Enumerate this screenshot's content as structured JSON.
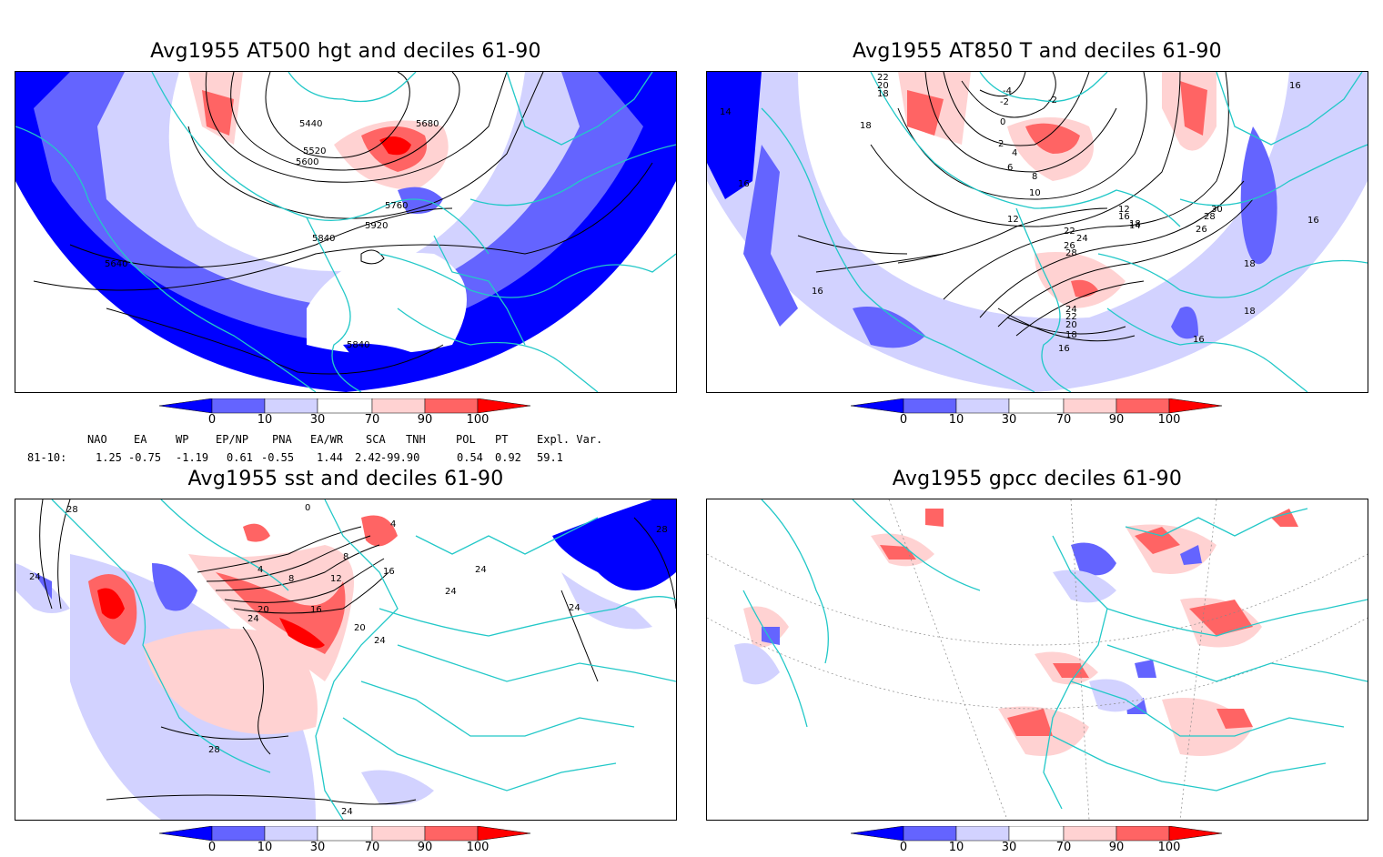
{
  "panels": [
    {
      "id": "p1",
      "title": "Avg1955 AT500 hgt and deciles 61-90",
      "contour_labels": [
        "5440",
        "5680",
        "5520",
        "5600",
        "5760",
        "5840",
        "5920",
        "5640",
        "5840"
      ]
    },
    {
      "id": "p2",
      "title": "Avg1955 AT850 T and deciles 61-90",
      "contour_labels": [
        "22",
        "20",
        "18",
        "-4",
        "-2",
        "0",
        "-2",
        "2",
        "4",
        "6",
        "8",
        "10",
        "12",
        "14",
        "16",
        "18",
        "22",
        "24",
        "26",
        "28",
        "30",
        "28",
        "26",
        "16",
        "18",
        "12",
        "16",
        "14",
        "16",
        "16",
        "18",
        "18",
        "24",
        "22",
        "20",
        "18",
        "16",
        "16"
      ]
    },
    {
      "id": "p3",
      "title": "Avg1955 sst and deciles 61-90",
      "contour_labels": [
        "28",
        "24",
        "4",
        "8",
        "12",
        "16",
        "20",
        "24",
        "28",
        "24",
        "16",
        "20",
        "24",
        "0",
        "4",
        "8",
        "24",
        "28",
        "24",
        "24"
      ]
    },
    {
      "id": "p4",
      "title": "Avg1955 gpcc deciles 61-90",
      "contour_labels": []
    }
  ],
  "colorbar": {
    "ticks": [
      "0",
      "10",
      "30",
      "70",
      "90",
      "100"
    ],
    "colors": {
      "below0": "#0000ff",
      "b0_10": "#6464ff",
      "b10_30": "#d2d2ff",
      "b30_70": "#ffffff",
      "b70_90": "#ffd2d2",
      "b90_100": "#ff6464",
      "above100": "#ff0000"
    }
  },
  "indices": {
    "headers": [
      "NAO",
      "EA",
      "WP",
      "EP/NP",
      "PNA",
      "EA/WR",
      "SCA",
      "TNH",
      "POL",
      "PT",
      "Expl. Var."
    ],
    "row_label": "81-10:",
    "values": [
      "1.25",
      "-0.75",
      "-1.19",
      "0.61",
      "-0.55",
      "1.44",
      "2.42",
      "-99.90",
      "0.54",
      "0.92",
      "59.1"
    ]
  },
  "colors": {
    "coast": "#22c8c8",
    "contour": "#000000"
  }
}
